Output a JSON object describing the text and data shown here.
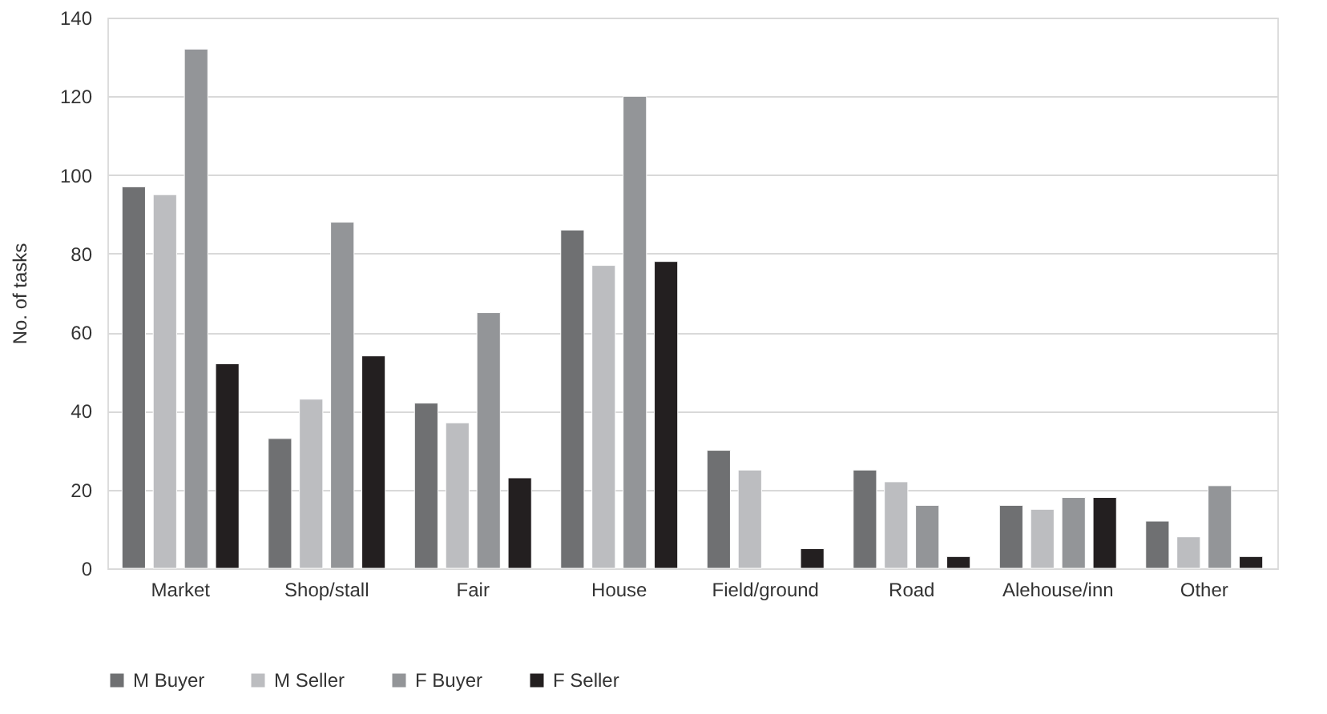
{
  "chart_data": {
    "type": "bar",
    "ylabel": "No. of tasks",
    "categories": [
      "Market",
      "Shop/stall",
      "Fair",
      "House",
      "Field/ground",
      "Road",
      "Alehouse/inn",
      "Other"
    ],
    "series": [
      {
        "name": "M Buyer",
        "color": "#6f7072",
        "values": [
          97,
          33,
          42,
          86,
          30,
          25,
          16,
          12
        ]
      },
      {
        "name": "M Seller",
        "color": "#bcbdc0",
        "values": [
          95,
          43,
          37,
          77,
          25,
          22,
          15,
          8
        ]
      },
      {
        "name": "F Buyer",
        "color": "#939598",
        "values": [
          132,
          88,
          65,
          120,
          null,
          16,
          18,
          21
        ]
      },
      {
        "name": "F Seller",
        "color": "#231f20",
        "values": [
          52,
          54,
          23,
          78,
          5,
          3,
          18,
          3
        ]
      }
    ],
    "ylim": [
      0,
      140
    ],
    "yticks": [
      0,
      20,
      40,
      60,
      80,
      100,
      120,
      140
    ],
    "grid": "y",
    "legend": "bottom"
  }
}
